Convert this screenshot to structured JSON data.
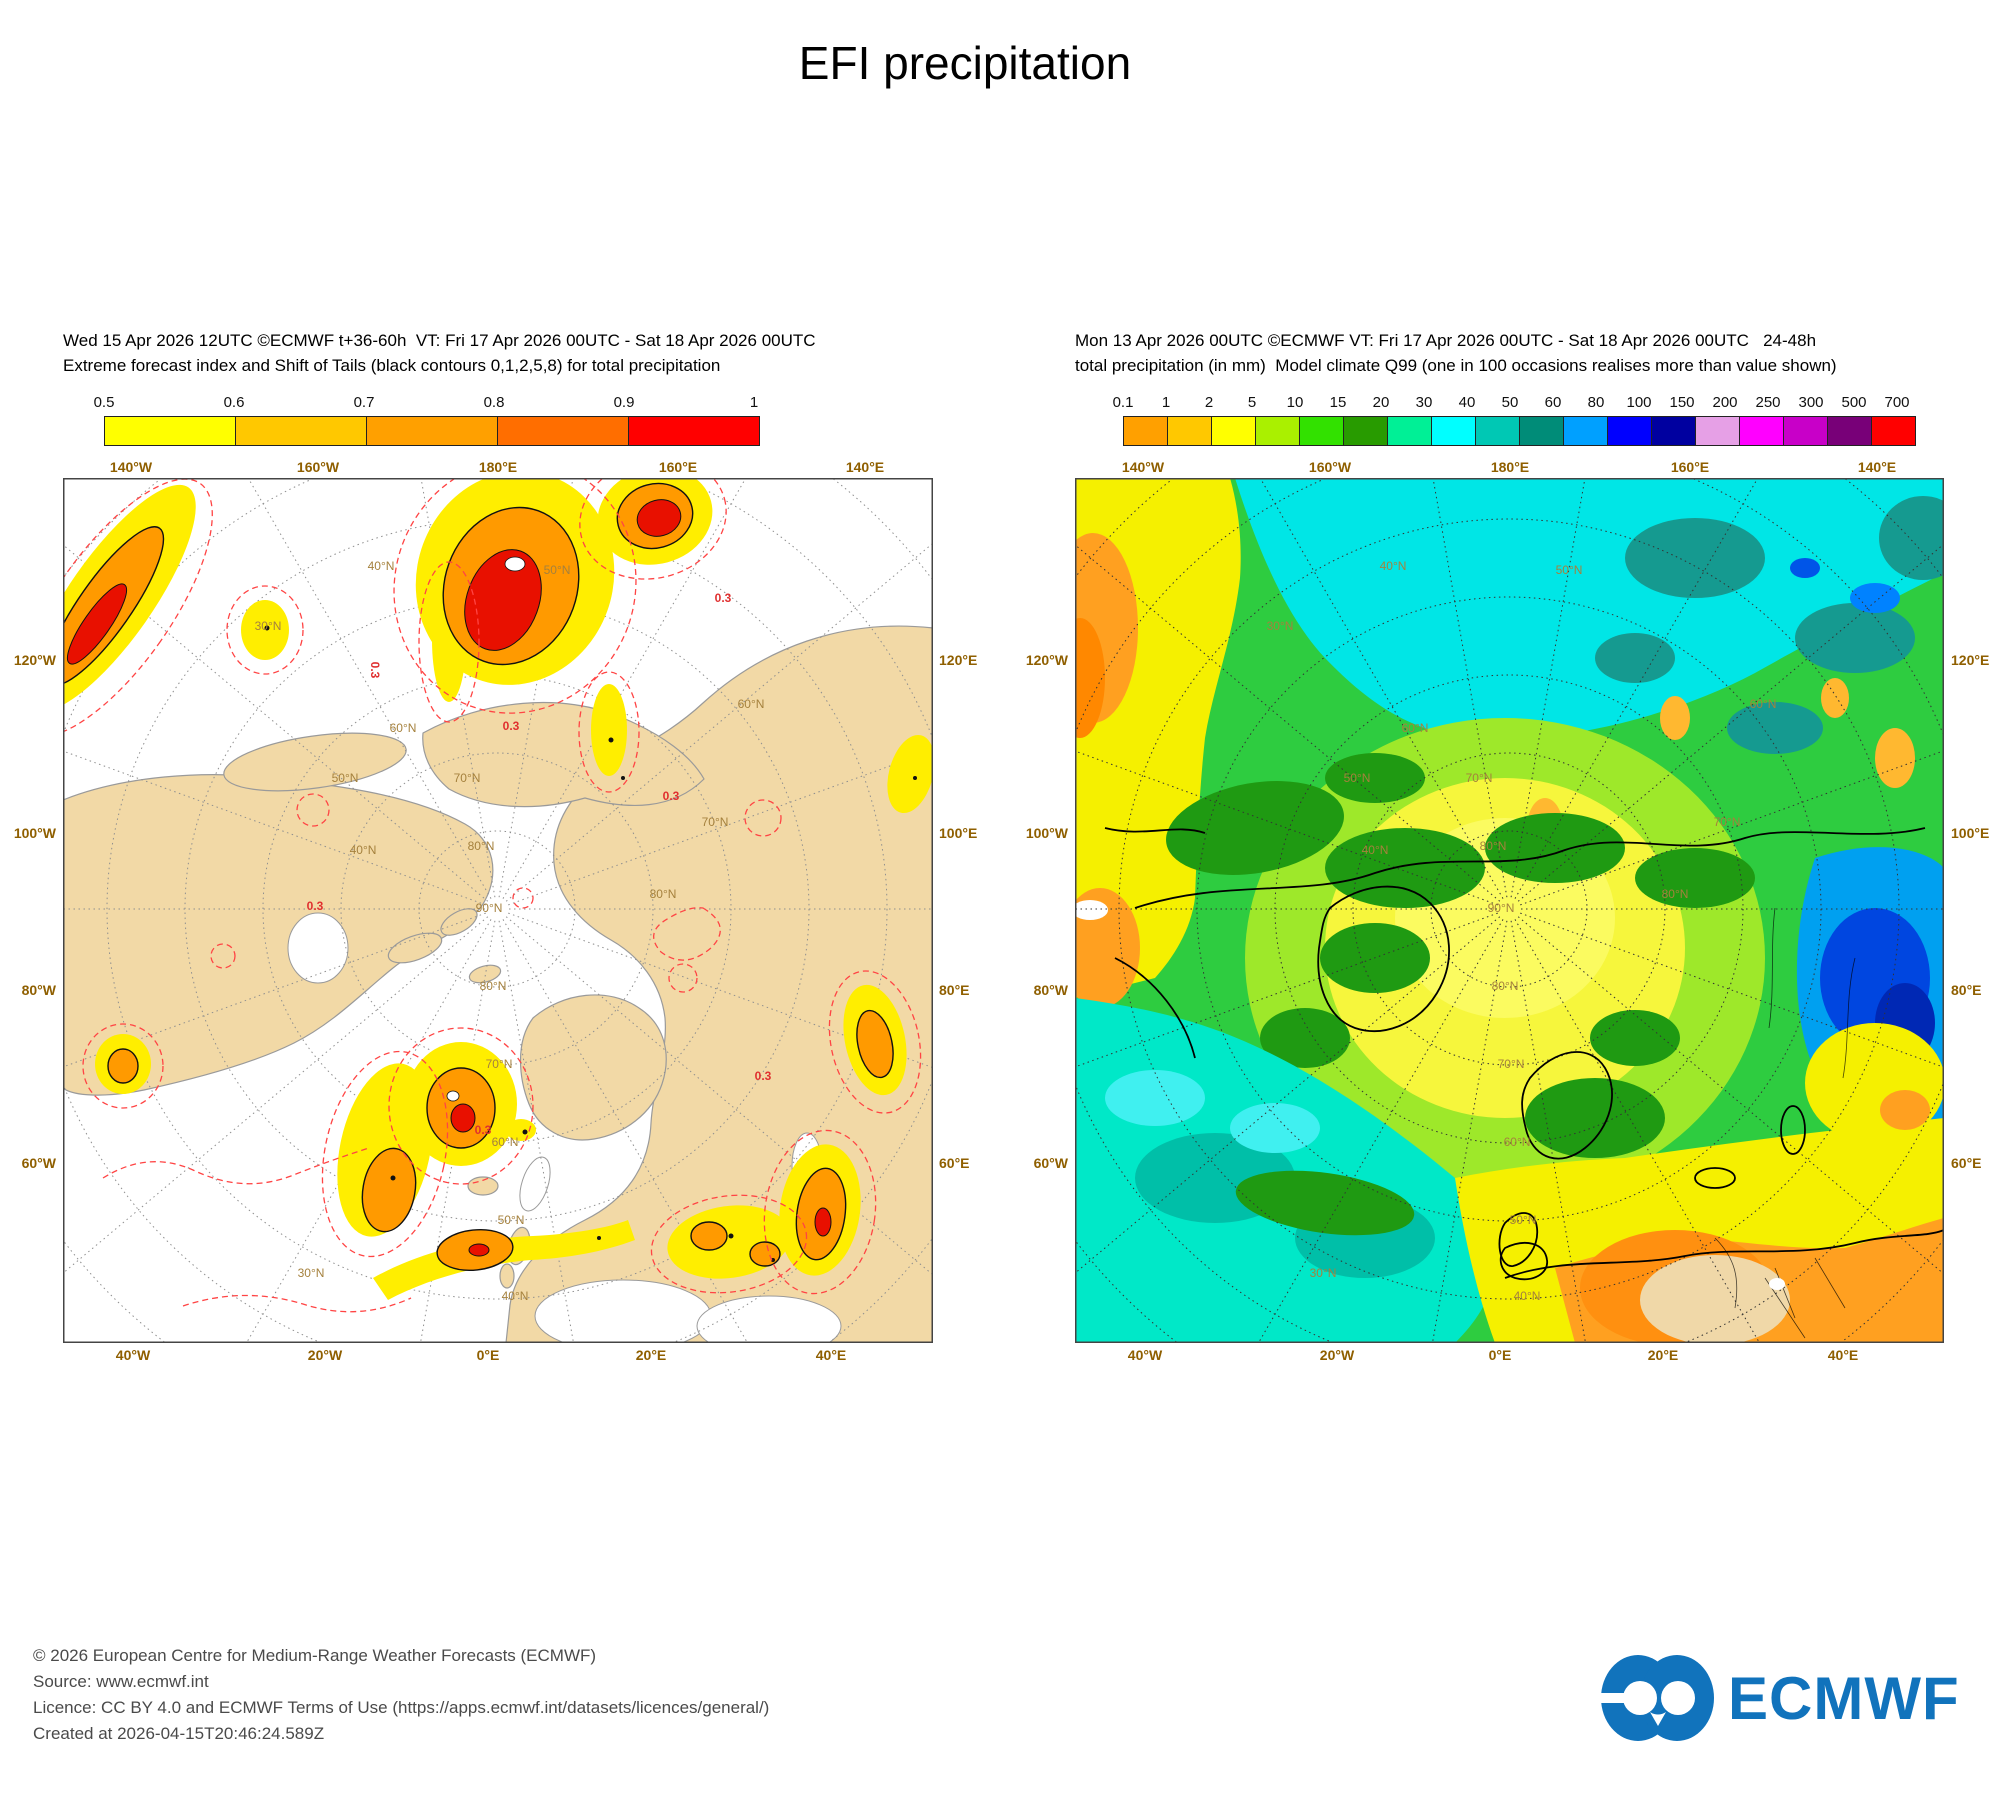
{
  "title": "EFI precipitation",
  "left_panel": {
    "header_line1": "Wed 15 Apr 2026 12UTC ©ECMWF t+36-60h  VT: Fri 17 Apr 2026 00UTC - Sat 18 Apr 2026 00UTC",
    "header_line2": "Extreme forecast index and Shift of Tails (black contours 0,1,2,5,8) for total precipitation",
    "colorbar": {
      "labels": [
        "0.5",
        "0.6",
        "0.7",
        "0.8",
        "0.9",
        "1"
      ],
      "colors": [
        "#ffff00",
        "#ffc800",
        "#ffa000",
        "#ff6e00",
        "#ff0000"
      ]
    },
    "contour_label": "0.3",
    "edge_labels": {
      "top": [
        "140°W",
        "160°W",
        "180°E",
        "160°E",
        "140°E"
      ],
      "bottom": [
        "40°W",
        "20°W",
        "0°E",
        "20°E",
        "40°E"
      ],
      "left": [
        "120°W",
        "100°W",
        "80°W",
        "60°W"
      ],
      "right": [
        "120°E",
        "100°E",
        "80°E",
        "60°E"
      ]
    },
    "lat_labels": [
      "30°N",
      "40°N",
      "50°N",
      "60°N",
      "70°N",
      "80°N",
      "90°N"
    ]
  },
  "right_panel": {
    "header_line1": "Mon 13 Apr 2026 00UTC ©ECMWF VT: Fri 17 Apr 2026 00UTC - Sat 18 Apr 2026 00UTC   24-48h",
    "header_line2": "total precipitation (in mm)  Model climate Q99 (one in 100 occasions realises more than value shown)",
    "colorbar": {
      "labels": [
        "0.1",
        "1",
        "2",
        "5",
        "10",
        "15",
        "20",
        "30",
        "40",
        "50",
        "60",
        "80",
        "100",
        "150",
        "200",
        "250",
        "300",
        "500",
        "700"
      ],
      "colors": [
        "#ffa000",
        "#ffc800",
        "#ffff00",
        "#aaf000",
        "#32e100",
        "#289b00",
        "#00f096",
        "#00ffff",
        "#00c8b4",
        "#008c78",
        "#00a0ff",
        "#0000ff",
        "#0000a0",
        "#e6a0e6",
        "#ff00ff",
        "#c800c8",
        "#780078",
        "#ff0000"
      ]
    },
    "edge_labels": {
      "top": [
        "140°W",
        "160°W",
        "180°E",
        "160°E",
        "140°E"
      ],
      "bottom": [
        "40°W",
        "20°W",
        "0°E",
        "20°E",
        "40°E"
      ],
      "left": [
        "120°W",
        "100°W",
        "80°W",
        "60°W"
      ],
      "right": [
        "120°E",
        "100°E",
        "80°E",
        "60°E"
      ]
    },
    "lat_labels": [
      "30°N",
      "40°N",
      "50°N",
      "60°N",
      "70°N",
      "80°N",
      "90°N"
    ]
  },
  "footer": {
    "lines": [
      "© 2026 European Centre for Medium-Range Weather Forecasts (ECMWF)",
      "Source: www.ecmwf.int",
      "Licence: CC BY 4.0 and ECMWF Terms of Use (https://apps.ecmwf.int/datasets/licences/general/)",
      "Created at 2026-04-15T20:46:24.589Z"
    ]
  },
  "logo": {
    "text": "ECMWF",
    "color": "#1173bc"
  }
}
